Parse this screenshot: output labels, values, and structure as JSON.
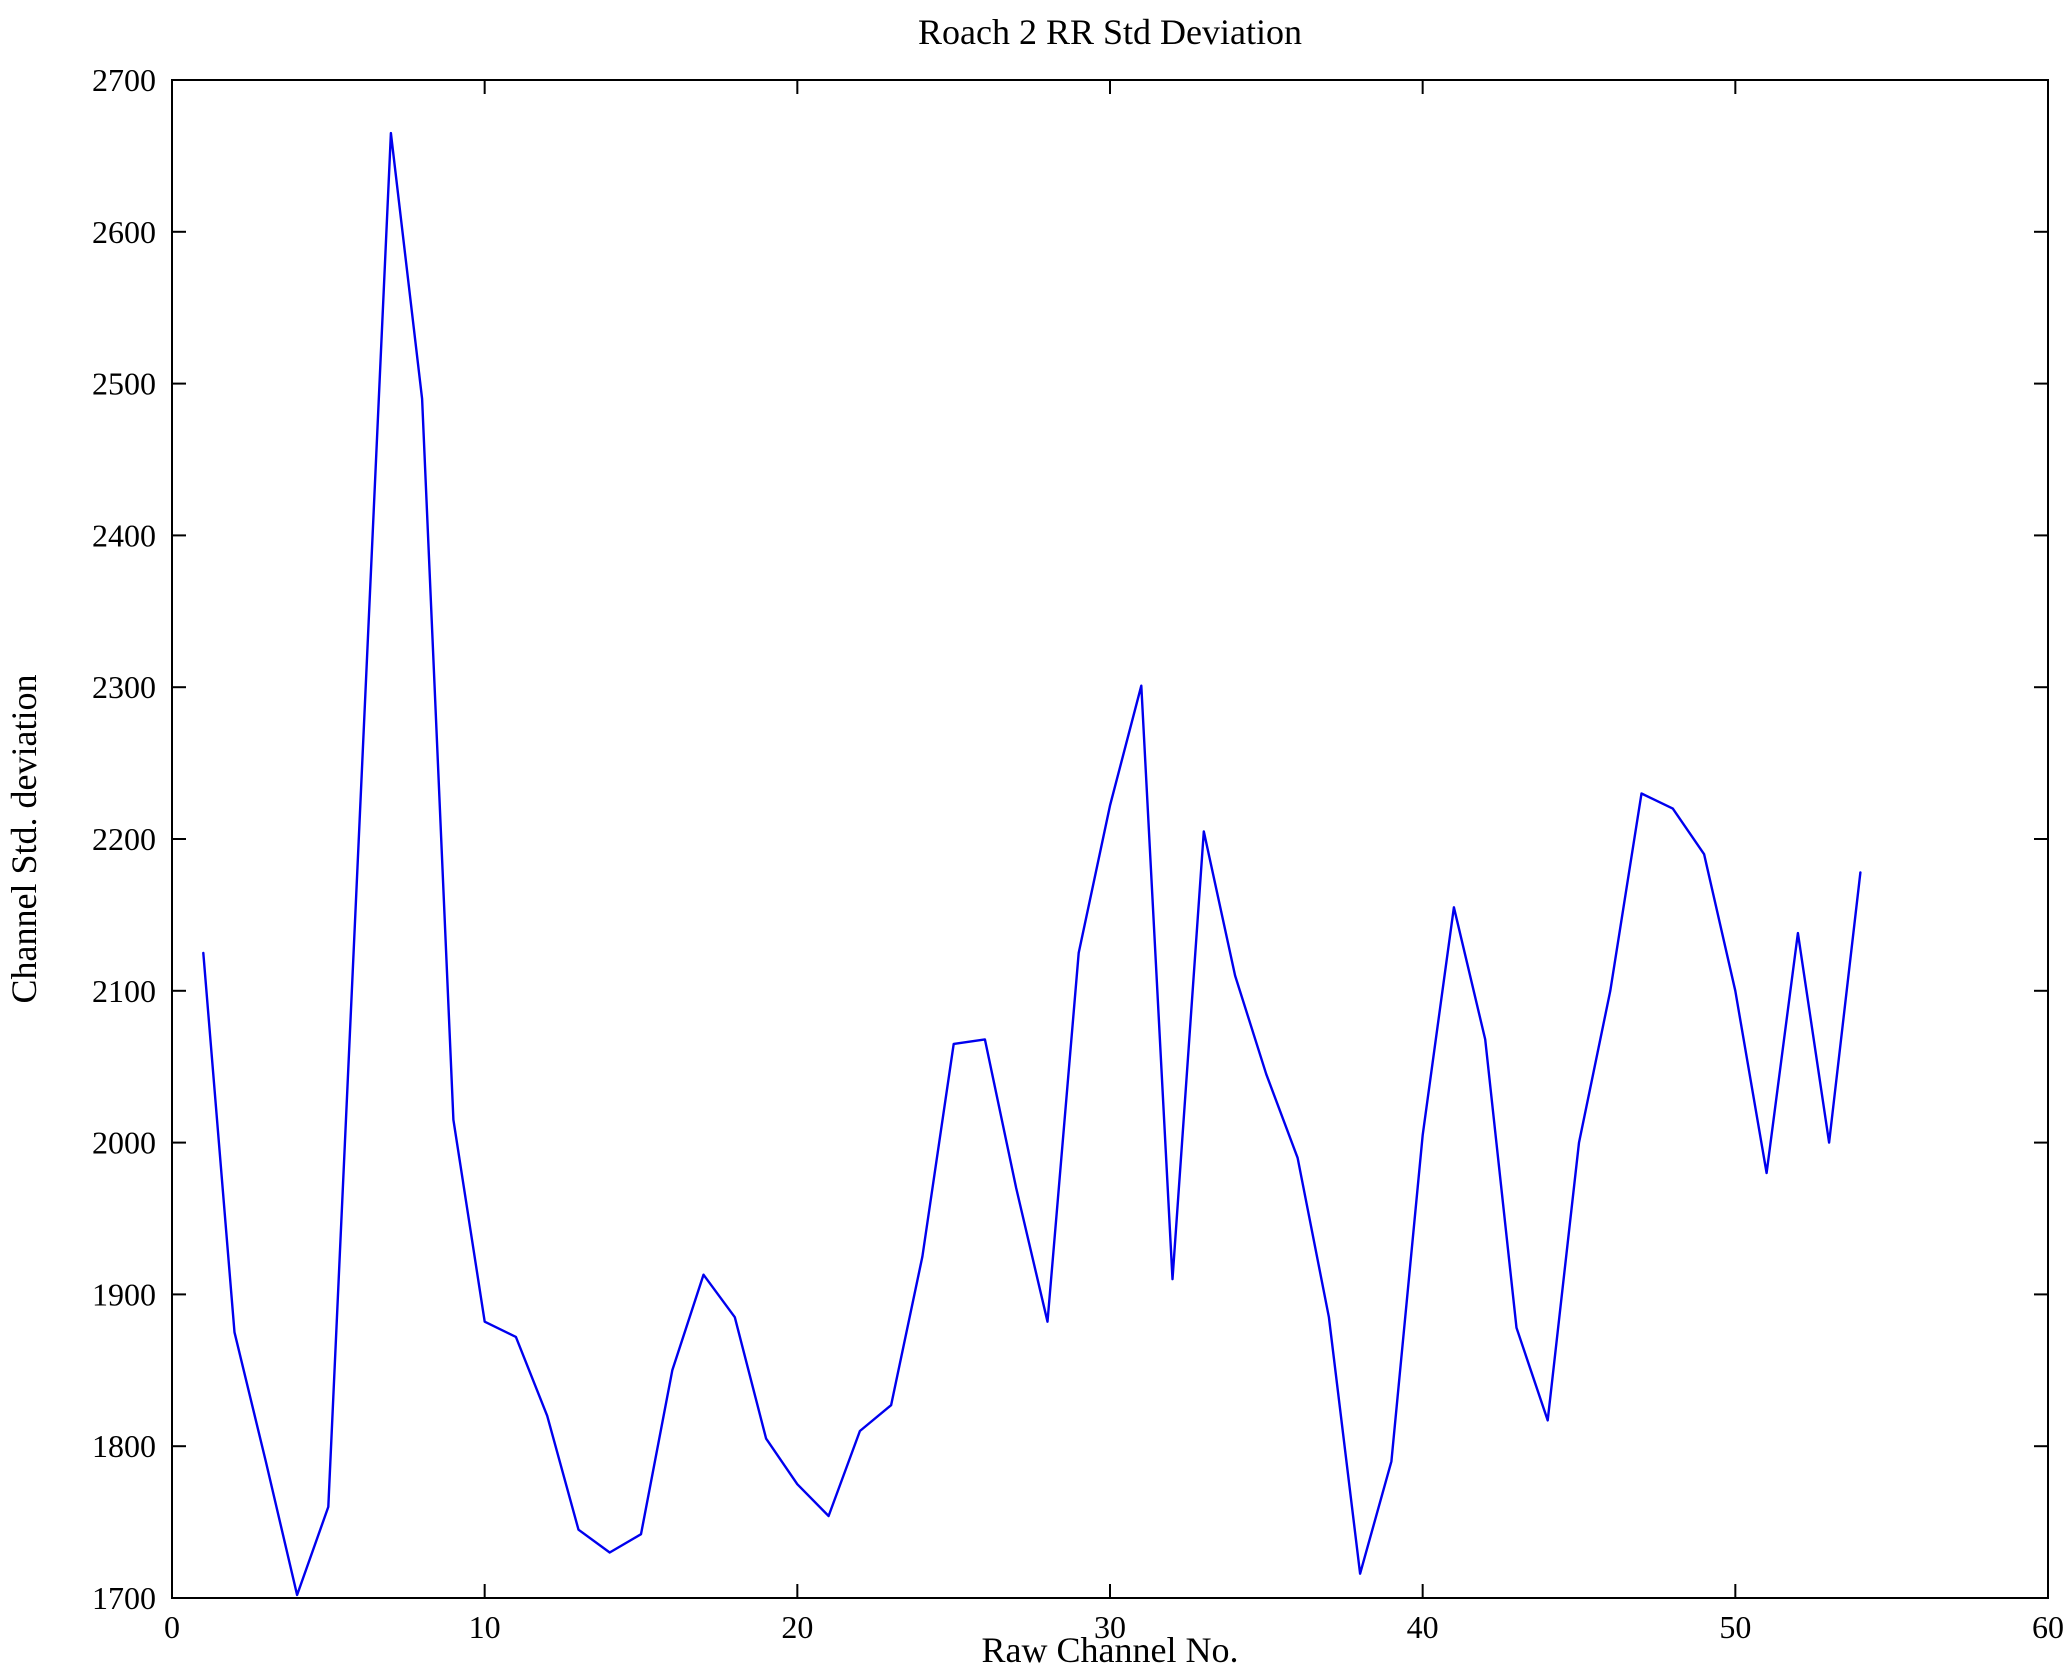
{
  "chart_data": {
    "type": "line",
    "title": "Roach 2 RR Std Deviation",
    "xlabel": "Raw Channel No.",
    "ylabel": "Channel Std. deviation",
    "xlim": [
      0,
      60
    ],
    "ylim": [
      1700,
      2700
    ],
    "xticks": [
      0,
      10,
      20,
      30,
      40,
      50,
      60
    ],
    "yticks": [
      1700,
      1800,
      1900,
      2000,
      2100,
      2200,
      2300,
      2400,
      2500,
      2600,
      2700
    ],
    "grid": false,
    "legend": "none",
    "line_color": "#0000ee",
    "axis_color": "#000000",
    "background_color": "#ffffff",
    "x": [
      1,
      2,
      3,
      4,
      5,
      6,
      7,
      8,
      9,
      10,
      11,
      12,
      13,
      14,
      15,
      16,
      17,
      18,
      19,
      20,
      21,
      22,
      23,
      24,
      25,
      26,
      27,
      28,
      29,
      30,
      31,
      32,
      33,
      34,
      35,
      36,
      37,
      38,
      39,
      40,
      41,
      42,
      43,
      44,
      45,
      46,
      47,
      48,
      49,
      50,
      51,
      52,
      53,
      54
    ],
    "y": [
      2125,
      1875,
      1790,
      1702,
      1760,
      2212,
      2665,
      2490,
      2015,
      1882,
      1872,
      1820,
      1745,
      1730,
      1742,
      1850,
      1913,
      1885,
      1805,
      1775,
      1754,
      1810,
      1827,
      1925,
      2065,
      2068,
      1970,
      1882,
      2125,
      2222,
      2301,
      1910,
      2205,
      2110,
      2045,
      1990,
      1885,
      1716,
      1790,
      2005,
      2155,
      2068,
      1878,
      1817,
      2000,
      2100,
      2230,
      2220,
      2190,
      2100,
      1980,
      2138,
      2000,
      2178
    ]
  }
}
